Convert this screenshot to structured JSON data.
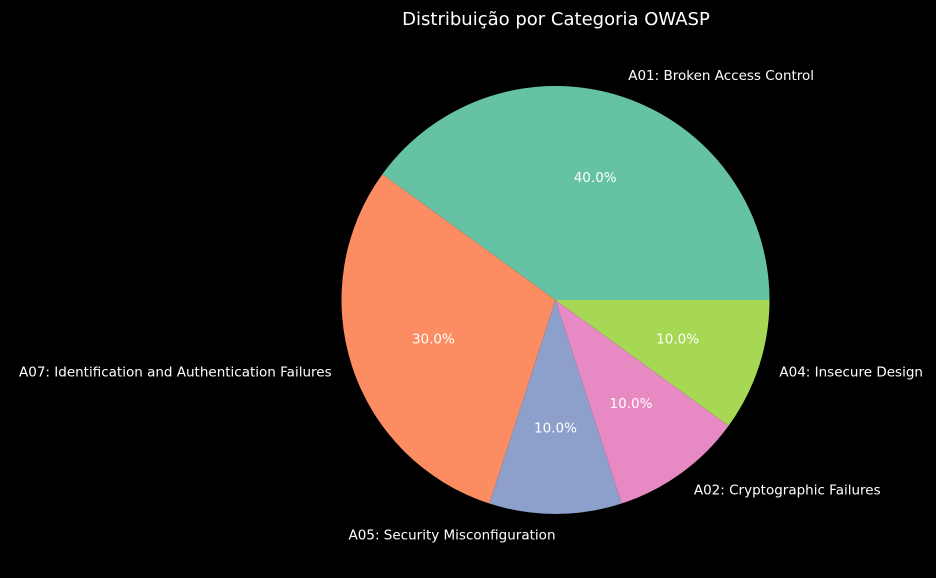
{
  "chart_data": {
    "type": "pie",
    "title": "Distribuição por Categoria OWASP",
    "categories": [
      "A01: Broken Access Control",
      "A07: Identification and Authentication Failures",
      "A05: Security Misconfiguration",
      "A02: Cryptographic Failures",
      "A04: Insecure Design"
    ],
    "values": [
      40,
      30,
      10,
      10,
      10
    ],
    "percent_labels": [
      "40.0%",
      "30.0%",
      "10.0%",
      "10.0%",
      "10.0%"
    ],
    "colors": [
      "#66c2a5",
      "#fc8d62",
      "#8da0cb",
      "#e78ac3",
      "#a6d854"
    ],
    "start_angle_deg": 0,
    "direction": "counterclockwise",
    "background": "#000000",
    "text_color": "#ffffff"
  }
}
